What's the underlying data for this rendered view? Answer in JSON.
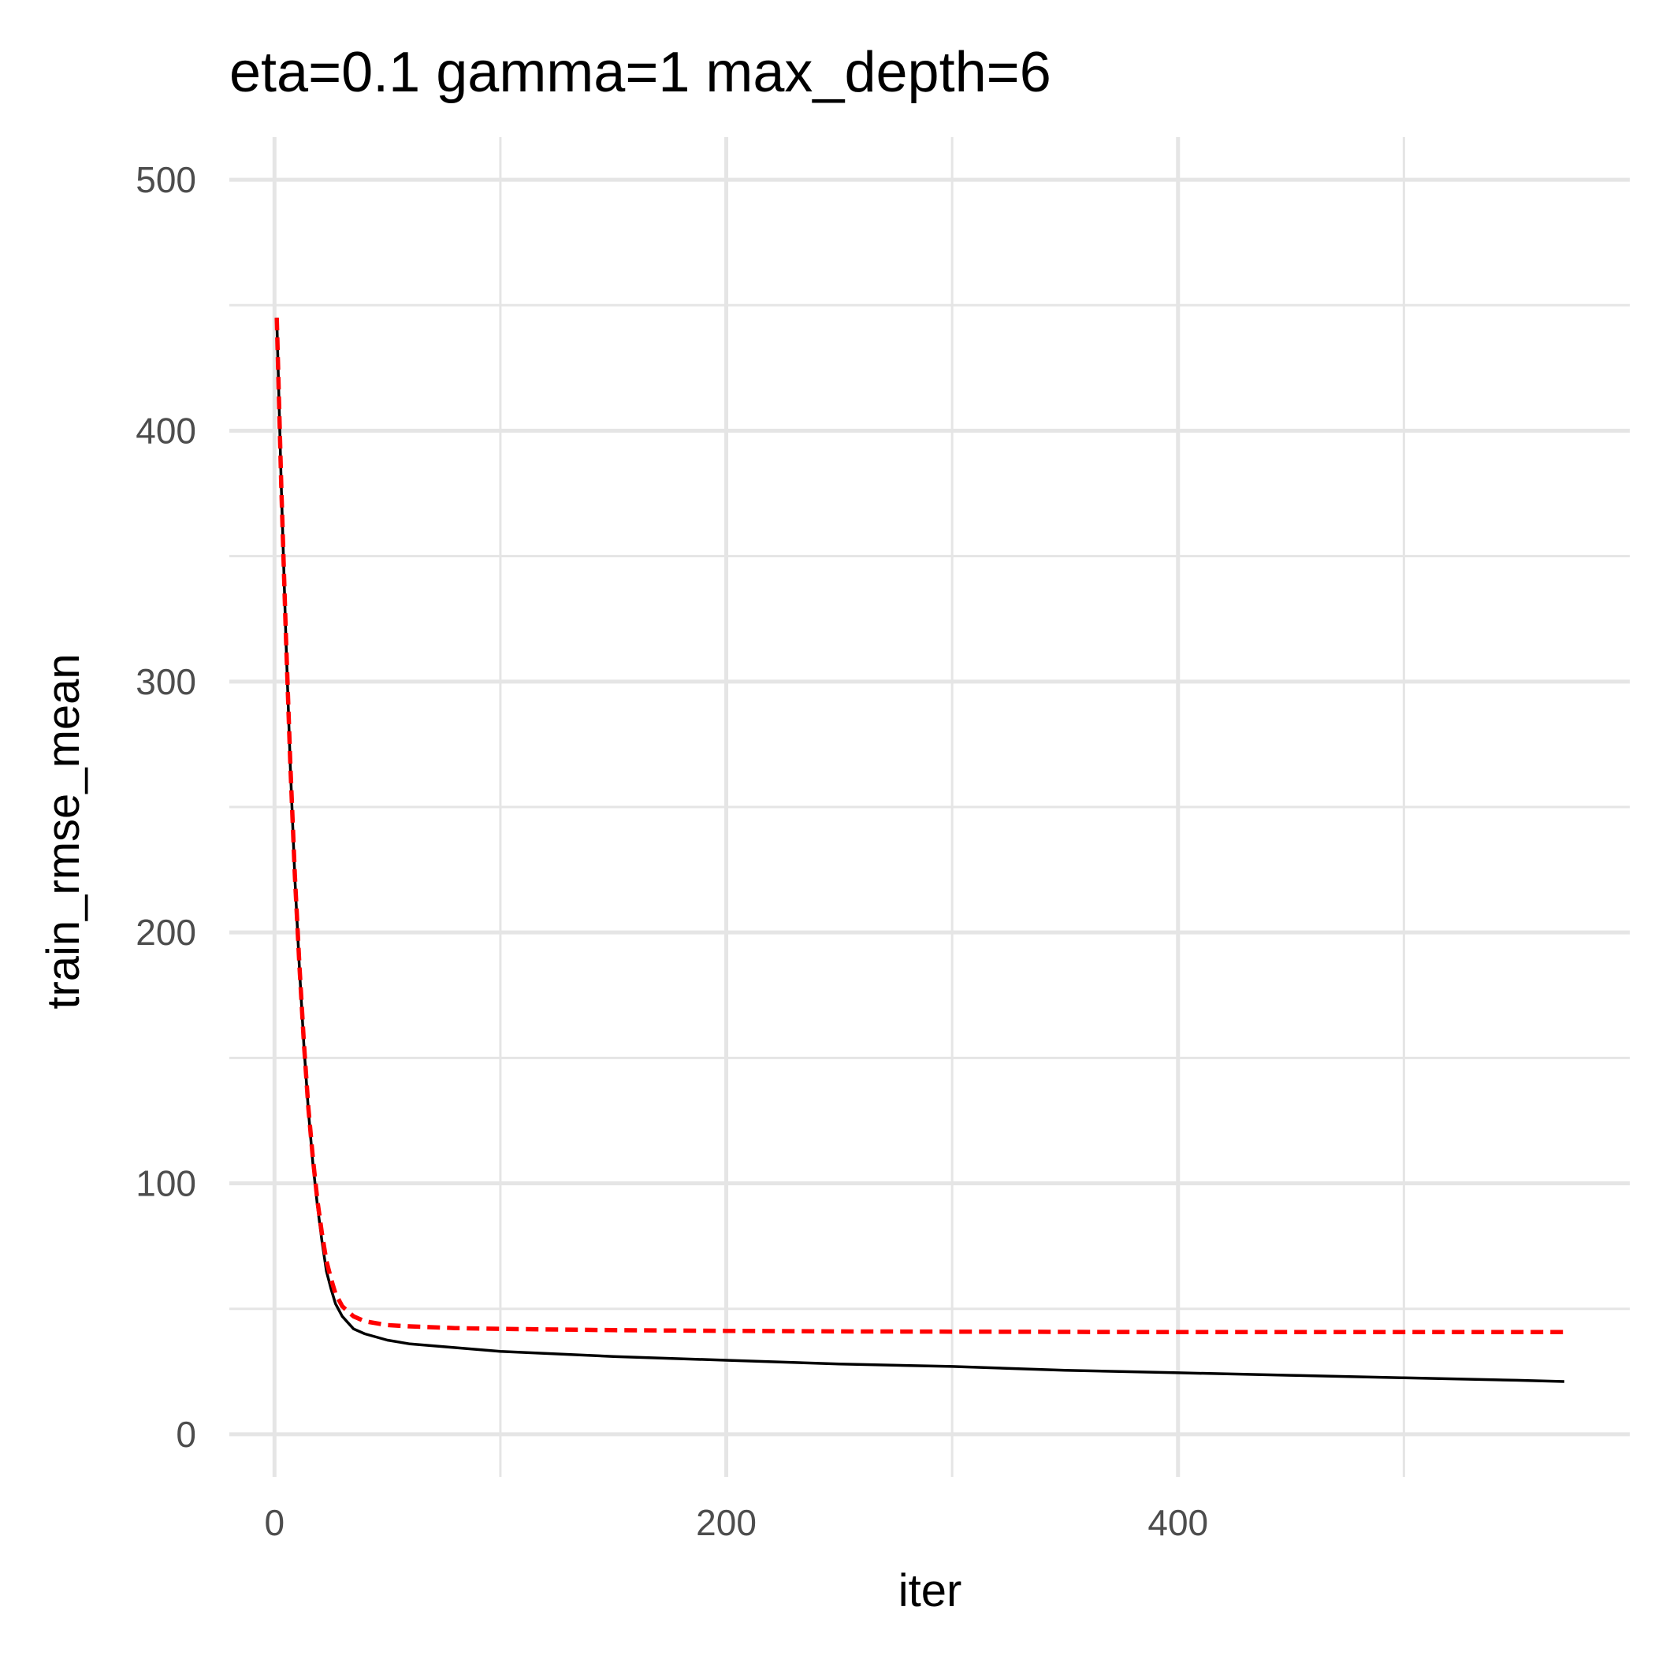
{
  "chart_data": {
    "type": "line",
    "title": "eta=0.1 gamma=1 max_depth=6",
    "xlabel": "iter",
    "ylabel": "train_rmse_mean",
    "xlim": [
      -20,
      600
    ],
    "ylim": [
      -17,
      517
    ],
    "x_major_ticks": [
      0,
      200,
      400
    ],
    "x_minor_ticks": [
      100,
      300,
      500
    ],
    "y_major_ticks": [
      0,
      100,
      200,
      300,
      400,
      500
    ],
    "y_minor_ticks": [
      50,
      150,
      250,
      350,
      450
    ],
    "grid": true,
    "legend": "none",
    "series": [
      {
        "color": "#000000",
        "line_style": "solid",
        "x": [
          1,
          3,
          5,
          7,
          9,
          11,
          13,
          15,
          17,
          19,
          21,
          23,
          25,
          27,
          30,
          35,
          40,
          50,
          60,
          80,
          100,
          150,
          200,
          250,
          300,
          350,
          400,
          450,
          500,
          550,
          571
        ],
        "y": [
          445,
          378,
          318,
          266,
          222,
          186,
          155,
          129,
          108,
          91,
          77,
          65,
          58,
          52,
          47,
          42,
          40,
          37.5,
          36,
          34.5,
          33,
          31,
          29.5,
          28,
          27,
          25.5,
          24.5,
          23.5,
          22.5,
          21.5,
          21
        ]
      },
      {
        "color": "#ff0000",
        "line_style": "dashed",
        "x": [
          1,
          3,
          5,
          7,
          9,
          11,
          13,
          15,
          17,
          19,
          21,
          23,
          25,
          27,
          30,
          35,
          40,
          50,
          60,
          80,
          100,
          150,
          200,
          250,
          300,
          350,
          400,
          450,
          500,
          550,
          571
        ],
        "y": [
          445,
          378,
          319,
          267,
          223,
          187,
          156,
          130,
          110,
          93,
          80,
          69,
          62,
          56,
          51,
          47,
          45,
          43.5,
          43,
          42.3,
          42,
          41.5,
          41.2,
          41,
          40.9,
          40.8,
          40.7,
          40.7,
          40.7,
          40.7,
          40.7
        ]
      }
    ]
  }
}
